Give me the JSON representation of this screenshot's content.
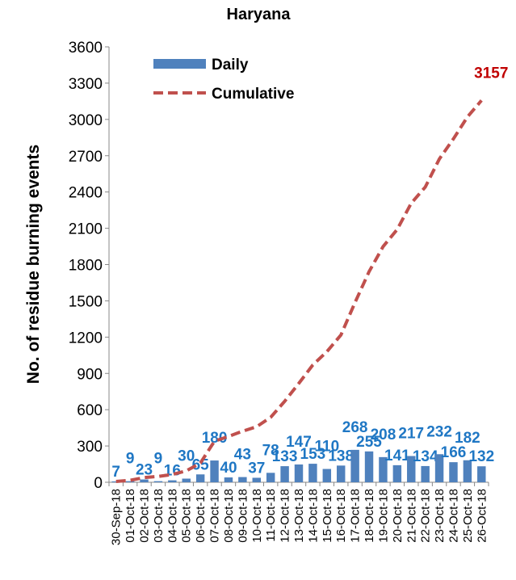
{
  "chart_data": {
    "type": "bar_line",
    "title": "Haryana",
    "y_label": "No. of residue burning  events",
    "categories": [
      "30-Sep-18",
      "01-Oct-18",
      "02-Oct-18",
      "03-Oct-18",
      "04-Oct-18",
      "05-Oct-18",
      "06-Oct-18",
      "07-Oct-18",
      "08-Oct-18",
      "09-Oct-18",
      "10-Oct-18",
      "11-Oct-18",
      "12-Oct-18",
      "13-Oct-18",
      "14-Oct-18",
      "15-Oct-18",
      "16-Oct-18",
      "17-Oct-18",
      "18-Oct-18",
      "19-Oct-18",
      "20-Oct-18",
      "21-Oct-18",
      "22-Oct-18",
      "23-Oct-18",
      "24-Oct-18",
      "25-Oct-18",
      "26-Oct-18"
    ],
    "series": [
      {
        "name": "Daily",
        "color": "#4f81bd",
        "label_color": "#1f77c4",
        "values": [
          7,
          9,
          23,
          9,
          16,
          30,
          65,
          180,
          40,
          43,
          37,
          78,
          133,
          147,
          153,
          110,
          138,
          268,
          255,
          208,
          141,
          217,
          134,
          232,
          166,
          182,
          132
        ]
      },
      {
        "name": "Cumulative",
        "color": "#c0504d",
        "label_color": "#c00000",
        "values": [
          7,
          16,
          39,
          48,
          64,
          94,
          159,
          339,
          379,
          422,
          459,
          537,
          670,
          817,
          970,
          1080,
          1218,
          1486,
          1741,
          1949,
          2090,
          2307,
          2441,
          2673,
          2839,
          3021,
          3157
        ]
      }
    ],
    "ylim": [
      0,
      3600
    ],
    "yticks": [
      0,
      300,
      600,
      900,
      1200,
      1500,
      1800,
      2100,
      2400,
      2700,
      3000,
      3300,
      3600
    ]
  }
}
